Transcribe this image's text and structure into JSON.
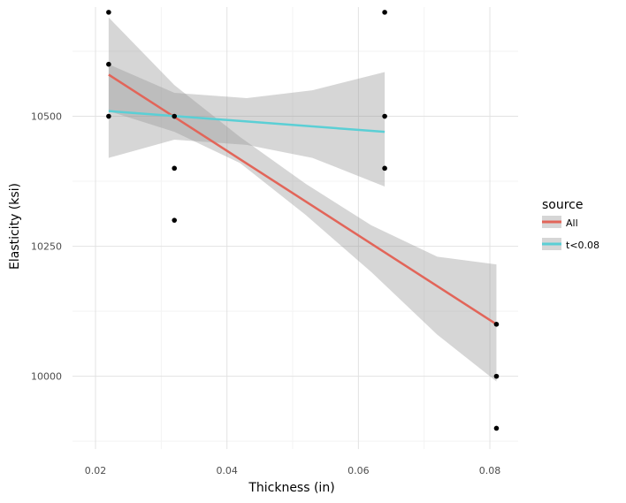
{
  "chart_data": {
    "type": "scatter",
    "title": "",
    "xlabel": "Thickness (in)",
    "ylabel": "Elasticity (ksi)",
    "xlim": [
      0.0165,
      0.0843
    ],
    "ylim": [
      9860,
      10710
    ],
    "x_ticks": [
      0.02,
      0.04,
      0.06,
      0.08
    ],
    "x_tick_labels": [
      "0.02",
      "0.04",
      "0.06",
      "0.08"
    ],
    "y_ticks": [
      10000,
      10250,
      10500
    ],
    "y_tick_labels": [
      "10000",
      "10250",
      "10500"
    ],
    "grid": true,
    "legend": {
      "title": "source",
      "position": "right",
      "entries": [
        {
          "label": "All",
          "color": "#E26559"
        },
        {
          "label": "t<0.08",
          "color": "#5BCFD5"
        }
      ]
    },
    "points": [
      {
        "x": 0.022,
        "y": 10700
      },
      {
        "x": 0.022,
        "y": 10600
      },
      {
        "x": 0.022,
        "y": 10500
      },
      {
        "x": 0.032,
        "y": 10500
      },
      {
        "x": 0.032,
        "y": 10400
      },
      {
        "x": 0.032,
        "y": 10300
      },
      {
        "x": 0.064,
        "y": 10700
      },
      {
        "x": 0.064,
        "y": 10500
      },
      {
        "x": 0.064,
        "y": 10400
      },
      {
        "x": 0.081,
        "y": 10100
      },
      {
        "x": 0.081,
        "y": 10000
      },
      {
        "x": 0.081,
        "y": 9900
      }
    ],
    "series": [
      {
        "name": "All",
        "color": "#E26559",
        "line": [
          [
            0.022,
            10580
          ],
          [
            0.081,
            10100
          ]
        ],
        "ribbon": [
          {
            "x": 0.022,
            "lower": 10510,
            "upper": 10690
          },
          {
            "x": 0.032,
            "lower": 10470,
            "upper": 10560
          },
          {
            "x": 0.042,
            "lower": 10410,
            "upper": 10460
          },
          {
            "x": 0.052,
            "lower": 10310,
            "upper": 10370
          },
          {
            "x": 0.062,
            "lower": 10200,
            "upper": 10290
          },
          {
            "x": 0.072,
            "lower": 10080,
            "upper": 10230
          },
          {
            "x": 0.081,
            "lower": 9990,
            "upper": 10215
          }
        ]
      },
      {
        "name": "t<0.08",
        "color": "#5BCFD5",
        "line": [
          [
            0.022,
            10510
          ],
          [
            0.064,
            10470
          ]
        ],
        "ribbon": [
          {
            "x": 0.022,
            "lower": 10420,
            "upper": 10600
          },
          {
            "x": 0.032,
            "lower": 10455,
            "upper": 10545
          },
          {
            "x": 0.043,
            "lower": 10445,
            "upper": 10535
          },
          {
            "x": 0.053,
            "lower": 10420,
            "upper": 10550
          },
          {
            "x": 0.064,
            "lower": 10365,
            "upper": 10585
          }
        ]
      }
    ]
  }
}
